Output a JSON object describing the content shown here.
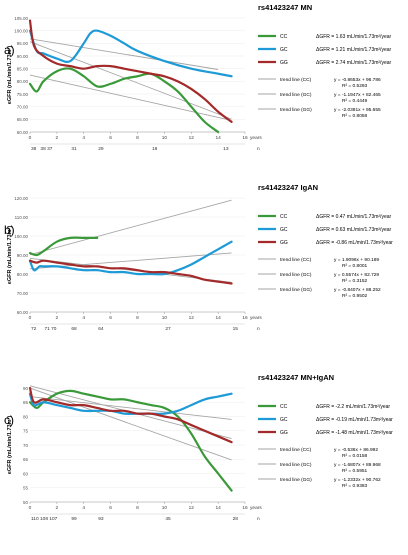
{
  "chart_data": [
    {
      "type": "line",
      "panel_label": "a)",
      "title": "rs41423247 MN",
      "ylabel": "eGFR (mL/min/1.73m²)",
      "ylim": [
        60,
        105
      ],
      "yticks": [
        "60.00",
        "65.00",
        "70.00",
        "75.00",
        "80.00",
        "85.00",
        "90.00",
        "95.00",
        "100.00",
        "105.00"
      ],
      "xlim": [
        0,
        16
      ],
      "xticks": [
        "0",
        "2",
        "4",
        "6",
        "8",
        "10",
        "12",
        "14",
        "16"
      ],
      "x_unit": "years",
      "n_label": "n",
      "n_values": [
        {
          "x": 0,
          "label": "38"
        },
        {
          "x": 0.7,
          "label": "38 37"
        },
        {
          "x": 3,
          "label": "31"
        },
        {
          "x": 5,
          "label": "29"
        },
        {
          "x": 9,
          "label": "18"
        },
        {
          "x": 14.3,
          "label": "13"
        }
      ],
      "series": [
        {
          "name": "CC",
          "color": "#3a9a3a",
          "x": [
            0,
            0.5,
            1,
            2,
            3,
            4,
            5,
            6,
            7,
            8,
            9,
            10,
            11,
            12,
            13,
            14
          ],
          "y": [
            79,
            76,
            80,
            84,
            85,
            82,
            78,
            79,
            81,
            82,
            83,
            80,
            76,
            70,
            64,
            60
          ]
        },
        {
          "name": "GC",
          "color": "#1e9ad6",
          "x": [
            0,
            0.5,
            1,
            2,
            3,
            4,
            4.5,
            5,
            6,
            7,
            8,
            10,
            12,
            14,
            15
          ],
          "y": [
            100,
            92,
            91,
            89,
            88,
            95,
            99,
            100,
            98,
            95,
            92,
            88,
            85,
            83,
            82
          ]
        },
        {
          "name": "GG",
          "color": "#a32a2a",
          "x": [
            0,
            0.3,
            1,
            2,
            3,
            4,
            5,
            6,
            7,
            8,
            9,
            10,
            11,
            12,
            13,
            14,
            15
          ],
          "y": [
            104,
            94,
            90,
            87,
            86,
            85,
            86,
            86,
            85,
            84,
            83,
            82,
            80,
            77,
            73,
            68,
            64
          ]
        }
      ],
      "trendlines": [
        {
          "name": "trend line (CC)",
          "eq": "y = -0.8653x + 96.786",
          "r2": "R² = 0.5293",
          "slope": -0.8653,
          "intercept": 96.786,
          "xmax": 14
        },
        {
          "name": "trend line (GC)",
          "eq": "y = -1.1947x + 82.465",
          "r2": "R² = 0.4449",
          "slope": -1.1947,
          "intercept": 82.465,
          "xmax": 15
        },
        {
          "name": "trend line (GG)",
          "eq": "y = -2.0381x + 95.655",
          "r2": "R² = 0.8058",
          "slope": -2.0381,
          "intercept": 95.655,
          "xmax": 15
        }
      ],
      "delta": [
        {
          "series": "CC",
          "text": "ΔGFR = 1.63 mL/min/1.73m²/year"
        },
        {
          "series": "GC",
          "text": "ΔGFR = 1.21 mL/min/1.73m²/year"
        },
        {
          "series": "GG",
          "text": "ΔGFR = 2.74 mL/min/1.73m²/year"
        }
      ]
    },
    {
      "type": "line",
      "panel_label": "b)",
      "title": "rs41423247 IgAN",
      "ylabel": "eGFR (mL/min/1.73m²)",
      "ylim": [
        60,
        120
      ],
      "yticks": [
        "60.00",
        "70.00",
        "80.00",
        "90.00",
        "100.00",
        "110.00",
        "120.00"
      ],
      "xlim": [
        0,
        16
      ],
      "xticks": [
        "0",
        "2",
        "4",
        "6",
        "8",
        "10",
        "12",
        "14",
        "16"
      ],
      "x_unit": "years",
      "n_label": "n",
      "n_values": [
        {
          "x": 0,
          "label": "72"
        },
        {
          "x": 1,
          "label": "71 70"
        },
        {
          "x": 3,
          "label": "68"
        },
        {
          "x": 5,
          "label": "64"
        },
        {
          "x": 10,
          "label": "27"
        },
        {
          "x": 15,
          "label": "15"
        }
      ],
      "series": [
        {
          "name": "CC",
          "color": "#3a9a3a",
          "x": [
            0,
            0.5,
            1,
            2,
            3,
            4,
            5
          ],
          "y": [
            91,
            90,
            92,
            97,
            99,
            99,
            99
          ]
        },
        {
          "name": "GC",
          "color": "#1e9ad6",
          "x": [
            0,
            0.3,
            0.7,
            1,
            2,
            3,
            4,
            5,
            6,
            7,
            8,
            9,
            10,
            11,
            12,
            13,
            14,
            15
          ],
          "y": [
            87,
            82,
            84,
            84,
            84,
            83,
            82,
            82,
            81,
            81,
            80,
            80,
            80,
            82,
            85,
            89,
            93,
            97
          ]
        },
        {
          "name": "GG",
          "color": "#a32a2a",
          "x": [
            0,
            0.5,
            1,
            2,
            3,
            4,
            5,
            6,
            7,
            8,
            9,
            10,
            11,
            12,
            13,
            14,
            15
          ],
          "y": [
            87,
            86,
            87,
            86,
            85,
            84,
            84,
            83,
            83,
            82,
            81,
            81,
            80,
            79,
            77,
            76,
            75
          ]
        }
      ],
      "trendlines": [
        {
          "name": "trend line (CC)",
          "eq": "y = 1.9096x + 90.189",
          "r2": "R² = 0.8001",
          "slope": 1.9096,
          "intercept": 90.189,
          "xmax": 15
        },
        {
          "name": "trend line (GC)",
          "eq": "y = 0.5574x + 82.729",
          "r2": "R² = 0.3152",
          "slope": 0.5574,
          "intercept": 82.729,
          "xmax": 15
        },
        {
          "name": "trend line (GG)",
          "eq": "y = -0.8407x + 88.252",
          "r2": "R² = 0.9502",
          "slope": -0.8407,
          "intercept": 88.252,
          "xmax": 15
        }
      ],
      "delta": [
        {
          "series": "CC",
          "text": "ΔGFR = 0.47 mL/min/1.73m²/year"
        },
        {
          "series": "GC",
          "text": "ΔGFR = 0.63 mL/min/1.73m²/year"
        },
        {
          "series": "GG",
          "text": "ΔGFR = -0.86 mL/min/1.73m²/year"
        }
      ]
    },
    {
      "type": "line",
      "panel_label": "c)",
      "title": "rs41423247 MN+IgAN",
      "ylabel": "eGFR (mL/min/1.73m²)",
      "ylim": [
        50,
        90
      ],
      "yticks": [
        "50",
        "55",
        "60",
        "65",
        "70",
        "75",
        "80",
        "85",
        "90"
      ],
      "xlim": [
        0,
        16
      ],
      "xticks": [
        "0",
        "2",
        "4",
        "6",
        "8",
        "10",
        "12",
        "14",
        "16"
      ],
      "x_unit": "years",
      "n_label": "n",
      "n_values": [
        {
          "x": 0,
          "label": "110 108 107"
        },
        {
          "x": 3,
          "label": "99"
        },
        {
          "x": 5,
          "label": "93"
        },
        {
          "x": 10,
          "label": "45"
        },
        {
          "x": 15,
          "label": "28"
        }
      ],
      "series": [
        {
          "name": "CC",
          "color": "#3a9a3a",
          "x": [
            0,
            0.5,
            1,
            2,
            3,
            4,
            5,
            6,
            7,
            8,
            9,
            10,
            11,
            12,
            13,
            14,
            15
          ],
          "y": [
            85,
            83,
            85,
            88,
            89,
            88,
            87,
            86,
            86,
            85,
            84,
            83,
            80,
            74,
            66,
            60,
            54
          ]
        },
        {
          "name": "GC",
          "color": "#1e9ad6",
          "x": [
            0,
            0.3,
            1,
            2,
            3,
            4,
            5,
            6,
            7,
            8,
            9,
            10,
            11,
            12,
            13,
            14,
            15
          ],
          "y": [
            88,
            84,
            85,
            84,
            83,
            82,
            82,
            82,
            81,
            81,
            81,
            81,
            82,
            84,
            86,
            87,
            88
          ]
        },
        {
          "name": "GG",
          "color": "#a32a2a",
          "x": [
            0,
            0.3,
            1,
            2,
            3,
            4,
            5,
            6,
            7,
            8,
            9,
            10,
            11,
            12,
            13,
            14,
            15
          ],
          "y": [
            90,
            85,
            86,
            85,
            84,
            84,
            83,
            82,
            82,
            81,
            81,
            80,
            79,
            77,
            75,
            73,
            71
          ]
        }
      ],
      "trendlines": [
        {
          "name": "trend line (CC)",
          "eq": "y = -0.536x + 86.992",
          "r2": "R² = 0.0158",
          "slope": -0.536,
          "intercept": 86.992,
          "xmax": 15
        },
        {
          "name": "trend line (GC)",
          "eq": "y = -1.6807x + 89.968",
          "r2": "R² = 0.5951",
          "slope": -1.6807,
          "intercept": 89.968,
          "xmax": 15
        },
        {
          "name": "trend line (GG)",
          "eq": "y = -1.2332x + 90.762",
          "r2": "R² = 0.9383",
          "slope": -1.2332,
          "intercept": 90.762,
          "xmax": 15
        }
      ],
      "delta": [
        {
          "series": "CC",
          "text": "ΔGFR = -2.2 mL/min/1.73m²/year"
        },
        {
          "series": "GC",
          "text": "ΔGFR = -0.19 mL/min/1.73m²/year"
        },
        {
          "series": "GG",
          "text": "ΔGFR = -1.48 mL/min/1.73m²/year"
        }
      ]
    }
  ]
}
